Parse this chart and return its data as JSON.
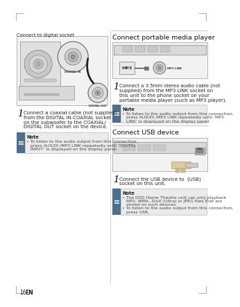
{
  "page_bg": "#ffffff",
  "page_num": "16",
  "page_lang": "EN",
  "left_col": {
    "section_title": "Connect to digital socket",
    "step1_text_lines": [
      "Connect a coaxial cable (not supplied)",
      "from the DIGITAL IN-COAXIAL socket",
      "on the subwoofer to the COAXIAL/",
      "DIGITAL OUT socket on the device."
    ],
    "step1_bold": [
      "DIGITAL IN-COAXIAL",
      "COAXIAL/"
    ],
    "note_title": "Note",
    "note_lines": [
      "To listen to the audio output from this connection,",
      "press AUX/DI /MP3 LINK repeatedly until ‘DIGITAL",
      "INPUT’ is displayed on the display panel."
    ],
    "note_bold": [
      "AUX/DI /MP3 LINK"
    ]
  },
  "right_col": {
    "section1_title": "Connect portable media player",
    "step1_text_lines": [
      "Connect a 3.5mm stereo audio cable (not",
      "supplied) from the MP3 LINK socket on",
      "this unit to the phone socket on your",
      "portable media player (such as MP3 player)."
    ],
    "step1_bold": [
      "MP3 LINK"
    ],
    "note1_title": "Note",
    "note1_lines": [
      "To listen to the audio output from this connection,",
      "press AUX/DI /MP3 LINK repeatedly until ‘MP3",
      "LINK’ is displayed on the display panel."
    ],
    "note1_bold": [
      "AUX/DI /MP3 LINK",
      "MP3"
    ],
    "section2_title": "Connect USB device",
    "step2_text_lines": [
      "Connect the USB device to  (USB)",
      "socket on this unit."
    ],
    "step2_bold": [
      "(USB)"
    ],
    "note2_title": "Note",
    "note2_lines": [
      "The DVD Home Theatre unit can only playback",
      "MP3, WMA, DivX (Ultra) or JPEG files that are",
      "stored on such devices.",
      "To listen to the audio output from this connection,",
      "press USB."
    ],
    "note2_bold": [
      "MP3,",
      "WMA,",
      "DivX",
      "JPEG",
      "USB."
    ],
    "note2_bullet_starts": [
      0,
      3
    ]
  },
  "divider_color": "#bbbbbb",
  "note_bg": "#ebebeb",
  "note_icon_color": "#4e6e8e",
  "note_border_color": "#aaaaaa",
  "title_color": "#000000",
  "text_color": "#222222",
  "small_text_color": "#444444",
  "sec_title_color": "#111111",
  "sec_title_fontsize": 6.8,
  "body_fontsize": 5.0,
  "note_fontsize": 4.4,
  "step_num_fontsize": 9.5,
  "page_num_fontsize": 5.5,
  "lh": 6.8
}
